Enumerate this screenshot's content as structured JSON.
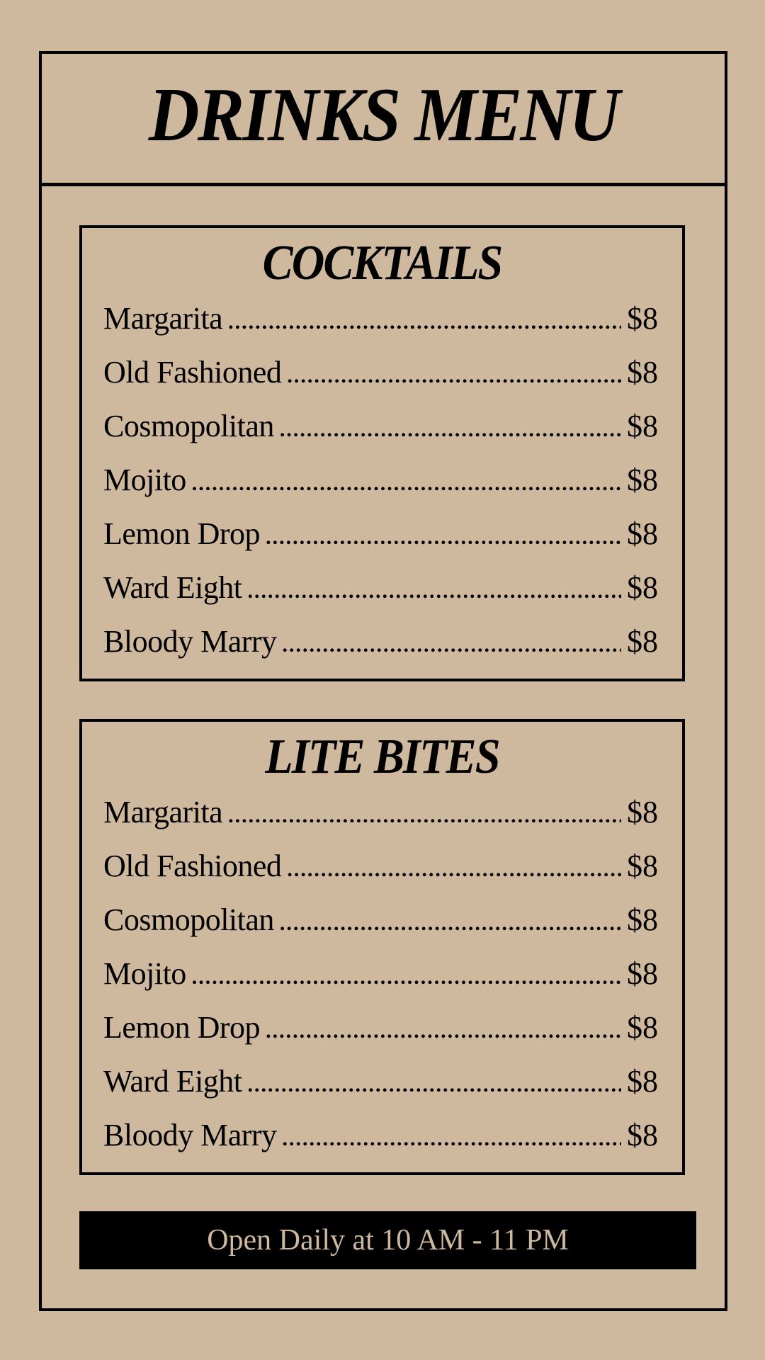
{
  "title": "DRINKS MENU",
  "sections": [
    {
      "title": "COCKTAILS",
      "items": [
        {
          "name": "Margarita",
          "price": "$8"
        },
        {
          "name": "Old Fashioned",
          "price": "$8"
        },
        {
          "name": "Cosmopolitan",
          "price": "$8"
        },
        {
          "name": "Mojito",
          "price": "$8"
        },
        {
          "name": "Lemon Drop",
          "price": "$8"
        },
        {
          "name": "Ward Eight",
          "price": "$8"
        },
        {
          "name": "Bloody Marry",
          "price": "$8"
        }
      ]
    },
    {
      "title": "LITE BITES",
      "items": [
        {
          "name": "Margarita",
          "price": "$8"
        },
        {
          "name": "Old Fashioned",
          "price": "$8"
        },
        {
          "name": "Cosmopolitan",
          "price": "$8"
        },
        {
          "name": "Mojito",
          "price": "$8"
        },
        {
          "name": "Lemon Drop",
          "price": "$8"
        },
        {
          "name": "Ward Eight",
          "price": "$8"
        },
        {
          "name": "Bloody Marry",
          "price": "$8"
        }
      ]
    }
  ],
  "footer": "Open Daily at 10 AM - 11 PM",
  "colors": {
    "background": "#cfb99e",
    "ink": "#000000"
  }
}
